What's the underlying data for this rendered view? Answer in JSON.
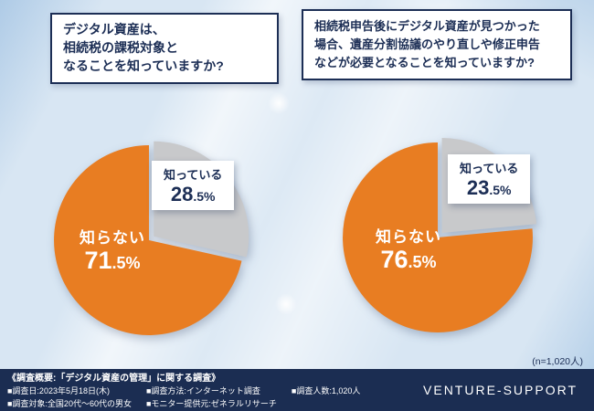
{
  "page": {
    "sample_note": "(n=1,020人)"
  },
  "chart_data": [
    {
      "type": "pie",
      "question": "デジタル資産は、\n相続税の課税対象と\nなることを知っていますか?",
      "unit": "%",
      "legend": "none",
      "start_angle_deg": 0,
      "direction": "clockwise",
      "slices": [
        {
          "label": "知っている",
          "value": 28.5,
          "percent_main": "28",
          "percent_rest": ".5%",
          "color": "#c8c9cb",
          "exploded": true
        },
        {
          "label": "知らない",
          "value": 71.5,
          "percent_main": "71",
          "percent_rest": ".5%",
          "color": "#e87d22",
          "exploded": false
        }
      ]
    },
    {
      "type": "pie",
      "question": "相続税申告後にデジタル資産が見つかった\n場合、遺産分割協議のやり直しや修正申告\nなどが必要となることを知っていますか?",
      "unit": "%",
      "legend": "none",
      "start_angle_deg": 0,
      "direction": "clockwise",
      "slices": [
        {
          "label": "知っている",
          "value": 23.5,
          "percent_main": "23",
          "percent_rest": ".5%",
          "color": "#c8c9cb",
          "exploded": true
        },
        {
          "label": "知らない",
          "value": 76.5,
          "percent_main": "76",
          "percent_rest": ".5%",
          "color": "#e87d22",
          "exploded": false
        }
      ]
    }
  ],
  "footer": {
    "survey_title": "《調査概要:「デジタル資産の管理」に関する調査》",
    "columns": [
      [
        "■調査日:2023年5月18日(木)",
        "■調査対象:全国20代〜60代の男女"
      ],
      [
        "■調査方法:インターネット調査",
        "■モニター提供元:ゼネラルリサーチ"
      ],
      [
        "■調査人数:1,020人"
      ]
    ],
    "brand": "VENTURE-SUPPORT"
  },
  "colors": {
    "orange": "#e87d22",
    "gray": "#c8c9cb",
    "navy": "#1c2e55",
    "footer_bg": "#1b2d52",
    "background": "#d8e6f3"
  }
}
